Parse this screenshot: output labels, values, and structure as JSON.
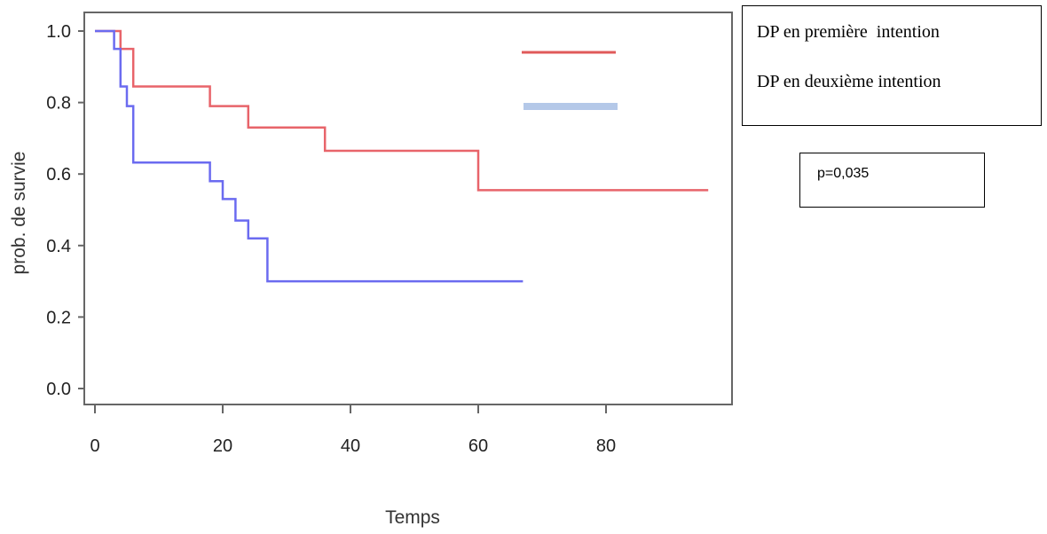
{
  "chart_data": {
    "type": "line",
    "step": true,
    "title": "",
    "xlabel": "Temps",
    "ylabel": "prob. de survie",
    "xlim": [
      0,
      100
    ],
    "ylim": [
      0,
      1
    ],
    "x_ticks": [
      0,
      20,
      40,
      60,
      80
    ],
    "y_ticks": [
      0.0,
      0.2,
      0.4,
      0.6,
      0.8,
      1.0
    ],
    "x_tick_labels": [
      "0",
      "20",
      "40",
      "60",
      "80"
    ],
    "y_tick_labels": [
      "0.0",
      "0.2",
      "0.4",
      "0.6",
      "0.8",
      "1.0"
    ],
    "grid": false,
    "legend_position": "right",
    "series": [
      {
        "name": "DP en première  intention",
        "color": "#e8646a",
        "points": [
          [
            0,
            1.0
          ],
          [
            4,
            0.95
          ],
          [
            6,
            0.845
          ],
          [
            18,
            0.79
          ],
          [
            24,
            0.73
          ],
          [
            36,
            0.665
          ],
          [
            60,
            0.555
          ],
          [
            96,
            0.555
          ]
        ]
      },
      {
        "name": "DP en deuxième intention",
        "color": "#6b6bf0",
        "points": [
          [
            0,
            1.0
          ],
          [
            3,
            0.95
          ],
          [
            4,
            0.845
          ],
          [
            5,
            0.79
          ],
          [
            6,
            0.632
          ],
          [
            18,
            0.58
          ],
          [
            20,
            0.53
          ],
          [
            22,
            0.47
          ],
          [
            24,
            0.42
          ],
          [
            27,
            0.3
          ],
          [
            67,
            0.3
          ]
        ]
      }
    ]
  },
  "legend": {
    "line1": "DP en première  intention",
    "line2": "DP en deuxième intention",
    "swatch1_color": "#e05a5a",
    "swatch2_color": "#b4c8e8"
  },
  "pvalue": {
    "text": "p=0,035"
  }
}
